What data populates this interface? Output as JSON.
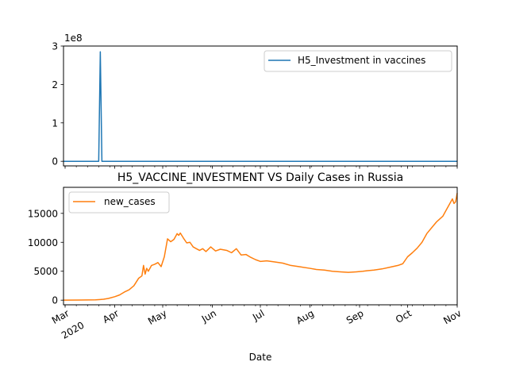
{
  "chart_data": [
    {
      "type": "line",
      "title": "",
      "xlabel": "",
      "ylabel": "",
      "offset_label": "1e8",
      "ylim": [
        -0.12,
        3.0
      ],
      "xlim": [
        "2020-02-29",
        "2020-11-01"
      ],
      "yticks": [
        0,
        1,
        2,
        3
      ],
      "ytick_labels": [
        "0",
        "1",
        "2",
        "3"
      ],
      "legend": {
        "position": "top-right"
      },
      "series": [
        {
          "name": "H5_Investment in vaccines",
          "color": "#1f77b4",
          "x": [
            "2020-02-29",
            "2020-03-22",
            "2020-03-23",
            "2020-03-24",
            "2020-03-25",
            "2020-11-01"
          ],
          "values": [
            0,
            0,
            2.85,
            0,
            0,
            0
          ]
        }
      ]
    },
    {
      "type": "line",
      "title": "H5_VACCINE_INVESTMENT VS Daily Cases in Russia",
      "xlabel": "Date",
      "ylabel": "",
      "ylim": [
        -800,
        19500
      ],
      "xlim": [
        "2020-02-29",
        "2020-11-01"
      ],
      "yticks": [
        0,
        5000,
        10000,
        15000
      ],
      "ytick_labels": [
        "0",
        "5000",
        "10000",
        "15000"
      ],
      "xtick_labels": [
        {
          "date": "2020-03-01",
          "label": "Mar",
          "sub": "2020"
        },
        {
          "date": "2020-04-01",
          "label": "Apr"
        },
        {
          "date": "2020-05-01",
          "label": "May"
        },
        {
          "date": "2020-06-01",
          "label": "Jun"
        },
        {
          "date": "2020-07-01",
          "label": "Jul"
        },
        {
          "date": "2020-08-01",
          "label": "Aug"
        },
        {
          "date": "2020-09-01",
          "label": "Sep"
        },
        {
          "date": "2020-10-01",
          "label": "Oct"
        },
        {
          "date": "2020-11-01",
          "label": "Nov"
        }
      ],
      "legend": {
        "position": "top-left"
      },
      "series": [
        {
          "name": "new_cases",
          "color": "#ff7f0e",
          "x": [
            "2020-02-29",
            "2020-03-10",
            "2020-03-20",
            "2020-03-25",
            "2020-03-28",
            "2020-04-01",
            "2020-04-04",
            "2020-04-07",
            "2020-04-10",
            "2020-04-13",
            "2020-04-16",
            "2020-04-18",
            "2020-04-19",
            "2020-04-20",
            "2020-04-21",
            "2020-04-22",
            "2020-04-24",
            "2020-04-26",
            "2020-04-28",
            "2020-04-30",
            "2020-05-02",
            "2020-05-04",
            "2020-05-06",
            "2020-05-08",
            "2020-05-10",
            "2020-05-11",
            "2020-05-12",
            "2020-05-14",
            "2020-05-16",
            "2020-05-18",
            "2020-05-20",
            "2020-05-22",
            "2020-05-24",
            "2020-05-26",
            "2020-05-28",
            "2020-05-31",
            "2020-06-03",
            "2020-06-06",
            "2020-06-08",
            "2020-06-10",
            "2020-06-13",
            "2020-06-16",
            "2020-06-19",
            "2020-06-22",
            "2020-06-25",
            "2020-06-28",
            "2020-07-01",
            "2020-07-05",
            "2020-07-10",
            "2020-07-15",
            "2020-07-20",
            "2020-07-25",
            "2020-08-01",
            "2020-08-05",
            "2020-08-10",
            "2020-08-15",
            "2020-08-20",
            "2020-08-25",
            "2020-08-30",
            "2020-09-03",
            "2020-09-06",
            "2020-09-10",
            "2020-09-15",
            "2020-09-20",
            "2020-09-25",
            "2020-09-28",
            "2020-10-01",
            "2020-10-04",
            "2020-10-07",
            "2020-10-10",
            "2020-10-13",
            "2020-10-16",
            "2020-10-19",
            "2020-10-21",
            "2020-10-23",
            "2020-10-25",
            "2020-10-27",
            "2020-10-29",
            "2020-10-30",
            "2020-10-31",
            "2020-11-01"
          ],
          "values": [
            0,
            15,
            50,
            160,
            300,
            600,
            900,
            1400,
            1800,
            2500,
            3800,
            4200,
            6000,
            4500,
            5500,
            5000,
            6000,
            6200,
            6500,
            5800,
            7500,
            10600,
            10100,
            10500,
            11500,
            11200,
            11600,
            10700,
            9900,
            10000,
            9200,
            8900,
            8600,
            8900,
            8400,
            9200,
            8500,
            8800,
            8700,
            8600,
            8200,
            8900,
            7800,
            7900,
            7400,
            7000,
            6700,
            6800,
            6600,
            6400,
            6000,
            5800,
            5500,
            5300,
            5200,
            5000,
            4900,
            4800,
            4900,
            5000,
            5100,
            5200,
            5400,
            5700,
            6000,
            6300,
            7500,
            8200,
            9000,
            10000,
            11500,
            12500,
            13500,
            14000,
            14500,
            15500,
            16500,
            17500,
            16700,
            17000,
            18500
          ]
        }
      ]
    }
  ]
}
